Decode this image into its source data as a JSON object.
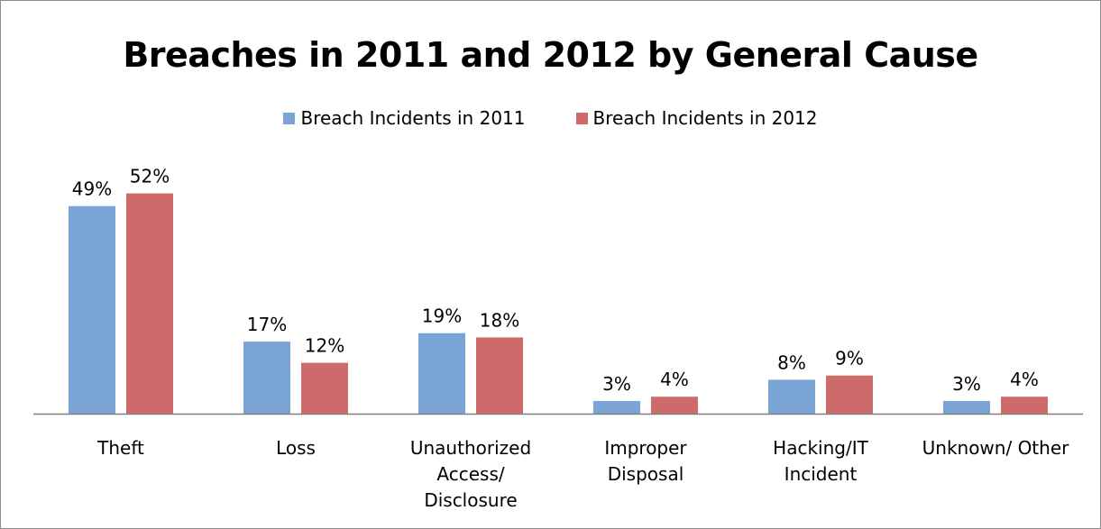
{
  "chart_data": {
    "type": "bar",
    "title": "Breaches in 2011 and 2012 by General Cause",
    "categories": [
      [
        "Theft"
      ],
      [
        "Loss"
      ],
      [
        "Unauthorized",
        "Access/",
        "Disclosure"
      ],
      [
        "Improper",
        "Disposal"
      ],
      [
        "Hacking/IT",
        "Incident"
      ],
      [
        "Unknown/ Other"
      ]
    ],
    "series": [
      {
        "name": "Breach Incidents in 2011",
        "color": "#7aa3d6",
        "values": [
          49,
          17,
          19,
          3,
          8,
          3
        ],
        "labels": [
          "49%",
          "17%",
          "19%",
          "3%",
          "8%",
          "3%"
        ]
      },
      {
        "name": "Breach Incidents in 2012",
        "color": "#cd6a6a",
        "values": [
          52,
          12,
          18,
          4,
          9,
          4
        ],
        "labels": [
          "52%",
          "12%",
          "18%",
          "4%",
          "9%",
          "4%"
        ]
      }
    ],
    "ylim": [
      0,
      55
    ],
    "legend_position": "top",
    "grid": false,
    "data_labels": true
  }
}
